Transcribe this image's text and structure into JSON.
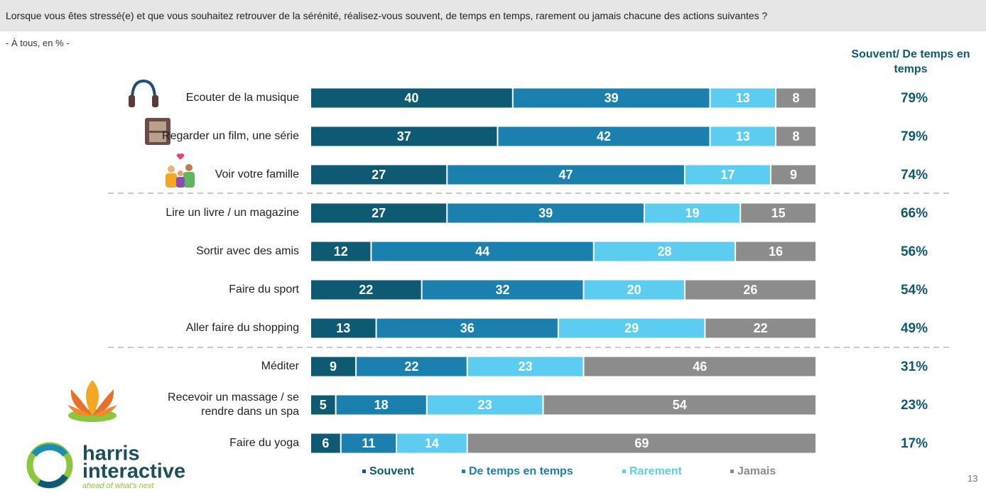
{
  "chart_data": {
    "type": "bar",
    "orientation": "horizontal",
    "stacked": true,
    "title": "Lorsque vous êtes stressé(e) et que vous souhaitez retrouver de la sérénité, réalisez-vous souvent, de temps en temps, rarement ou jamais chacune des actions suivantes ?",
    "subtitle": "- À tous, en % -",
    "categories": [
      "Ecouter de la musique",
      "Regarder un film, une série",
      "Voir votre famille",
      "Lire un livre / un magazine",
      "Sortir avec des amis",
      "Faire du sport",
      "Aller faire du shopping",
      "Méditer",
      "Recevoir un massage / se rendre dans un spa",
      "Faire du yoga"
    ],
    "series": [
      {
        "name": "Souvent",
        "color": "#0f5a73",
        "values": [
          40,
          37,
          27,
          27,
          12,
          22,
          13,
          9,
          5,
          6
        ]
      },
      {
        "name": "De temps en temps",
        "color": "#1b80ad",
        "values": [
          39,
          42,
          47,
          39,
          44,
          32,
          36,
          22,
          18,
          11
        ]
      },
      {
        "name": "Rarement",
        "color": "#5ccdf1",
        "values": [
          13,
          13,
          17,
          19,
          28,
          20,
          29,
          23,
          23,
          14
        ]
      },
      {
        "name": "Jamais",
        "color": "#8c8c8c",
        "values": [
          8,
          8,
          9,
          15,
          16,
          26,
          22,
          46,
          54,
          69
        ]
      }
    ],
    "xlim": [
      0,
      100
    ],
    "totals": {
      "title": "Souvent/ De temps en temps",
      "color": "#0f5a73",
      "values": [
        79,
        79,
        74,
        66,
        56,
        54,
        49,
        31,
        23,
        17
      ],
      "value_labels": [
        "79%",
        "79%",
        "74%",
        "66%",
        "56%",
        "54%",
        "49%",
        "31%",
        "23%",
        "17%"
      ]
    }
  },
  "logo": {
    "line1": "harris",
    "line2": "interactive",
    "tagline": "ahead of what's next"
  },
  "page_number": "13"
}
